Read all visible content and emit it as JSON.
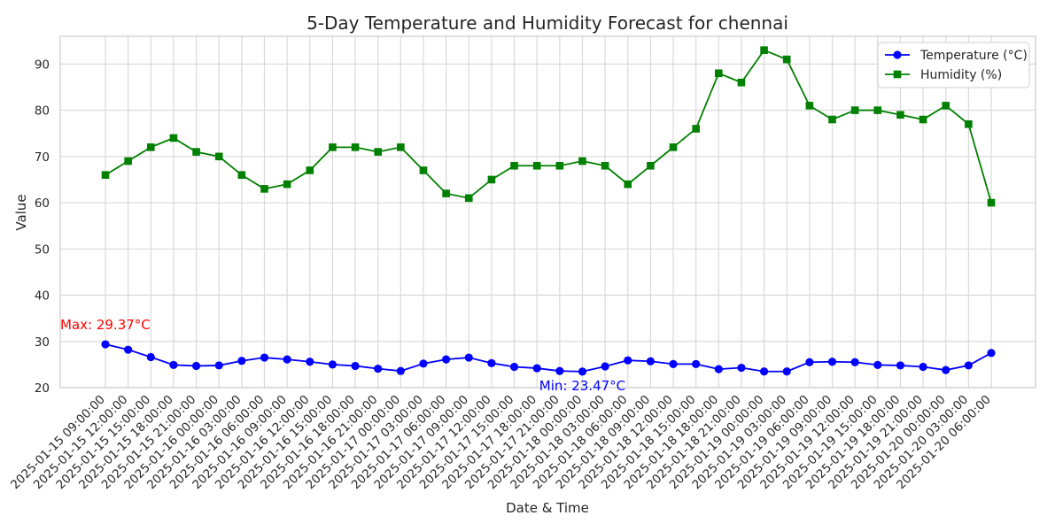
{
  "chart_data": {
    "type": "line",
    "title": "5-Day Temperature and Humidity Forecast for chennai",
    "xlabel": "Date & Time",
    "ylabel": "Value",
    "ylim": [
      20,
      96
    ],
    "yticks": [
      20,
      30,
      40,
      50,
      60,
      70,
      80,
      90
    ],
    "grid": true,
    "legend_position": "top-right",
    "categories": [
      "2025-01-15 09:00:00",
      "2025-01-15 12:00:00",
      "2025-01-15 15:00:00",
      "2025-01-15 18:00:00",
      "2025-01-15 21:00:00",
      "2025-01-16 00:00:00",
      "2025-01-16 03:00:00",
      "2025-01-16 06:00:00",
      "2025-01-16 09:00:00",
      "2025-01-16 12:00:00",
      "2025-01-16 15:00:00",
      "2025-01-16 18:00:00",
      "2025-01-16 21:00:00",
      "2025-01-17 00:00:00",
      "2025-01-17 03:00:00",
      "2025-01-17 06:00:00",
      "2025-01-17 09:00:00",
      "2025-01-17 12:00:00",
      "2025-01-17 15:00:00",
      "2025-01-17 18:00:00",
      "2025-01-17 21:00:00",
      "2025-01-18 00:00:00",
      "2025-01-18 03:00:00",
      "2025-01-18 06:00:00",
      "2025-01-18 09:00:00",
      "2025-01-18 12:00:00",
      "2025-01-18 15:00:00",
      "2025-01-18 18:00:00",
      "2025-01-18 21:00:00",
      "2025-01-19 00:00:00",
      "2025-01-19 03:00:00",
      "2025-01-19 06:00:00",
      "2025-01-19 09:00:00",
      "2025-01-19 12:00:00",
      "2025-01-19 15:00:00",
      "2025-01-19 18:00:00",
      "2025-01-19 21:00:00",
      "2025-01-20 00:00:00",
      "2025-01-20 03:00:00",
      "2025-01-20 06:00:00"
    ],
    "series": [
      {
        "name": "Temperature (°C)",
        "color": "#0000ff",
        "marker": "circle",
        "values": [
          29.37,
          28.2,
          26.6,
          24.9,
          24.7,
          24.8,
          25.8,
          26.5,
          26.1,
          25.6,
          25.0,
          24.7,
          24.1,
          23.6,
          25.2,
          26.1,
          26.5,
          25.3,
          24.5,
          24.2,
          23.6,
          23.47,
          24.6,
          25.9,
          25.7,
          25.1,
          25.1,
          24.0,
          24.3,
          23.5,
          23.5,
          25.5,
          25.6,
          25.5,
          24.9,
          24.8,
          24.5,
          23.8,
          24.8,
          27.5
        ]
      },
      {
        "name": "Humidity (%)",
        "color": "#008000",
        "marker": "square",
        "values": [
          66,
          69,
          72,
          74,
          71,
          70,
          66,
          63,
          64,
          67,
          72,
          72,
          71,
          72,
          67,
          62,
          61,
          65,
          68,
          68,
          68,
          69,
          68,
          64,
          68,
          72,
          76,
          88,
          86,
          93,
          91,
          81,
          78,
          80,
          80,
          79,
          78,
          81,
          77,
          60
        ]
      }
    ],
    "annotations": [
      {
        "text": "Max: 29.37°C",
        "color": "#ff0000",
        "x_index": 0,
        "y": 29.37,
        "position": "above-left"
      },
      {
        "text": "Min: 23.47°C",
        "color": "#0000ff",
        "x_index": 21,
        "y": 23.47,
        "position": "below"
      }
    ]
  }
}
